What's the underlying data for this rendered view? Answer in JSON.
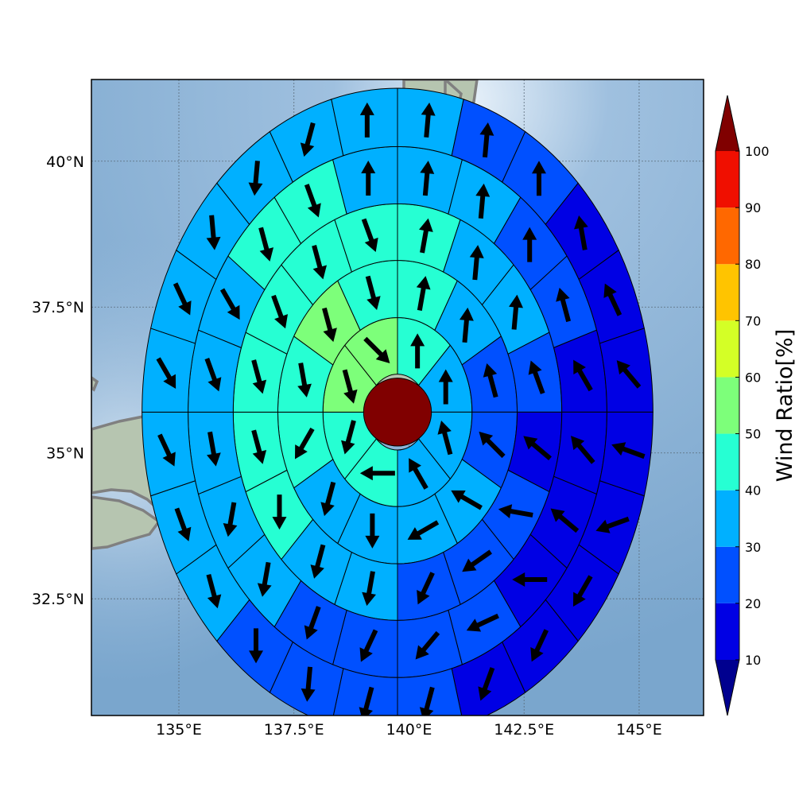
{
  "chart_data": {
    "type": "polar-sector-map",
    "xlabel": "",
    "ylabel": "",
    "xlim": [
      133.1,
      146.4
    ],
    "ylim": [
      30.5,
      41.4
    ],
    "x_ticks": [
      135,
      137.5,
      140,
      142.5,
      145
    ],
    "x_tick_labels": [
      "135°E",
      "137.5°E",
      "140°E",
      "142.5°E",
      "145°E"
    ],
    "y_ticks": [
      32.5,
      35,
      37.5,
      40
    ],
    "y_tick_labels": [
      "32.5°N",
      "35°N",
      "37.5°N",
      "40°N"
    ],
    "grid": true,
    "center": {
      "lon": 139.75,
      "lat": 35.7,
      "wind_ratio": 100
    },
    "radii_deg": [
      0.65,
      1.62,
      2.6,
      3.57,
      4.55,
      5.55
    ],
    "sectors_per_ring": [
      8,
      12,
      16,
      20,
      24
    ],
    "ring_values": [
      [
        40,
        30,
        30,
        30,
        40,
        40,
        50,
        50
      ],
      [
        40,
        30,
        20,
        20,
        30,
        30,
        30,
        30,
        40,
        40,
        50,
        40
      ],
      [
        40,
        30,
        30,
        20,
        10,
        20,
        20,
        20,
        30,
        30,
        40,
        40,
        40,
        40,
        40,
        40
      ],
      [
        30,
        30,
        20,
        20,
        10,
        10,
        10,
        10,
        20,
        20,
        20,
        20,
        30,
        30,
        30,
        30,
        30,
        40,
        40,
        30
      ],
      [
        30,
        20,
        20,
        10,
        10,
        10,
        10,
        10,
        10,
        10,
        10,
        20,
        20,
        20,
        20,
        30,
        30,
        30,
        30,
        30,
        30,
        30,
        30,
        30
      ]
    ],
    "ring_vectors_deg": [
      [
        0,
        0,
        345,
        330,
        270,
        195,
        165,
        135
      ],
      [
        10,
        5,
        345,
        315,
        300,
        240,
        180,
        195,
        210,
        170,
        165,
        165
      ],
      [
        10,
        5,
        5,
        340,
        310,
        280,
        235,
        205,
        190,
        195,
        180,
        165,
        165,
        160,
        165,
        160
      ],
      [
        5,
        5,
        0,
        345,
        330,
        320,
        310,
        270,
        245,
        220,
        205,
        200,
        190,
        190,
        170,
        160,
        150,
        165,
        160,
        0
      ],
      [
        5,
        5,
        0,
        350,
        335,
        320,
        290,
        250,
        210,
        205,
        200,
        195,
        195,
        185,
        180,
        165,
        160,
        155,
        150,
        155,
        175,
        185,
        195,
        0
      ]
    ],
    "colorbar": {
      "label": "Wind Ratio[%]",
      "ticks": [
        10,
        20,
        30,
        40,
        50,
        60,
        70,
        80,
        90,
        100
      ],
      "tick_labels": [
        "10",
        "20",
        "30",
        "40",
        "50",
        "60",
        "70",
        "80",
        "90",
        "100"
      ],
      "bins": [
        {
          "from": 10,
          "to": 20,
          "color": "#0000e4"
        },
        {
          "from": 20,
          "to": 30,
          "color": "#0050ff"
        },
        {
          "from": 30,
          "to": 40,
          "color": "#00b0ff"
        },
        {
          "from": 40,
          "to": 50,
          "color": "#26ffd3"
        },
        {
          "from": 50,
          "to": 60,
          "color": "#7dff7a"
        },
        {
          "from": 60,
          "to": 70,
          "color": "#d4ff26"
        },
        {
          "from": 70,
          "to": 80,
          "color": "#ffc400"
        },
        {
          "from": 80,
          "to": 90,
          "color": "#ff6800"
        },
        {
          "from": 90,
          "to": 100,
          "color": "#f00f00"
        }
      ],
      "under_color": "#00008f",
      "over_color": "#800000"
    },
    "map": {
      "ocean_color": "#8ab3d6",
      "land_color": "#b9c6b3",
      "coast_color": "#808080"
    }
  }
}
